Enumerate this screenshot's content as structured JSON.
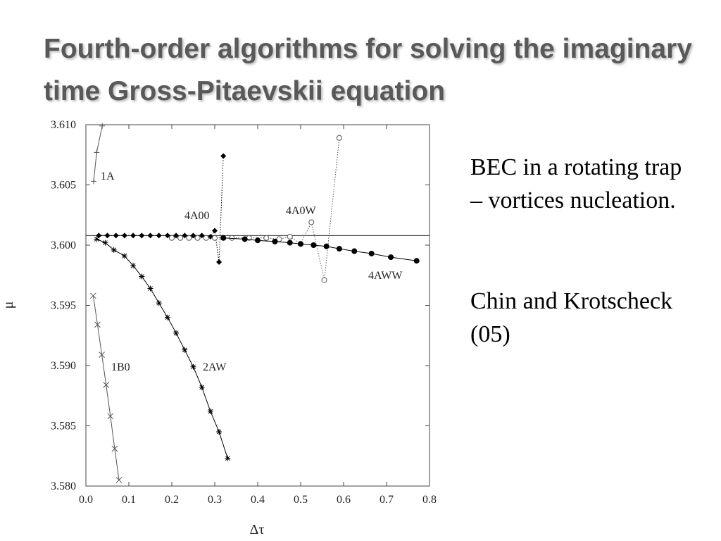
{
  "title": "Fourth-order algorithms for solving the imaginary time Gross-Pitaevskii equation",
  "body": [
    "BEC in a rotating trap – vortices nucleation.",
    "Chin and Krotscheck (05)"
  ],
  "chart_data": {
    "type": "scatter",
    "xlabel": "Δτ",
    "ylabel": "μ",
    "xlim": [
      0,
      0.8
    ],
    "ylim": [
      3.58,
      3.61
    ],
    "xticks": [
      {
        "value": 0,
        "label": "0.0"
      },
      0.1,
      0.2,
      0.3,
      0.4,
      0.5,
      0.6,
      0.7,
      0.8
    ],
    "yticks": [
      {
        "value": 3.58,
        "label": "3.580"
      },
      3.585,
      {
        "value": 3.59,
        "label": "3.590"
      },
      3.595,
      {
        "value": 3.6,
        "label": "3.600"
      },
      3.605,
      {
        "value": 3.61,
        "label": "3.610"
      }
    ],
    "reference_line": 3.6008,
    "series": [
      {
        "name": "1A",
        "marker": "plus",
        "line": "solid",
        "color": "#555555",
        "x": [
          0.018,
          0.025,
          0.038
        ],
        "values": [
          3.6053,
          3.6077,
          3.6099
        ]
      },
      {
        "name": "4A00",
        "marker": "diamond",
        "line": "dotted",
        "color": "#000000",
        "x": [
          0.03,
          0.05,
          0.07,
          0.09,
          0.11,
          0.13,
          0.15,
          0.17,
          0.19,
          0.21,
          0.23,
          0.25,
          0.27,
          0.29,
          0.3,
          0.31,
          0.32
        ],
        "values": [
          3.6008,
          3.6008,
          3.6008,
          3.6008,
          3.6008,
          3.6008,
          3.6008,
          3.6008,
          3.6008,
          3.6008,
          3.6008,
          3.6008,
          3.6008,
          3.6007,
          3.6012,
          3.5986,
          3.6074
        ]
      },
      {
        "name": "4A0W",
        "marker": "open-circle",
        "line": "dotted",
        "color": "#555555",
        "x": [
          0.2,
          0.22,
          0.24,
          0.26,
          0.28,
          0.3,
          0.34,
          0.38,
          0.42,
          0.45,
          0.475,
          0.5,
          0.525,
          0.555,
          0.59
        ],
        "values": [
          3.6006,
          3.6006,
          3.6006,
          3.6006,
          3.6006,
          3.6006,
          3.6006,
          3.6006,
          3.6006,
          3.6005,
          3.6007,
          3.6001,
          3.6019,
          3.5971,
          3.6089
        ]
      },
      {
        "name": "4AWW",
        "marker": "filled-circle",
        "line": "solid",
        "color": "#000000",
        "x": [
          0.32,
          0.37,
          0.4,
          0.44,
          0.475,
          0.5,
          0.53,
          0.56,
          0.59,
          0.625,
          0.665,
          0.71,
          0.77
        ],
        "values": [
          3.6006,
          3.6005,
          3.6004,
          3.6003,
          3.6002,
          3.6001,
          3.6,
          3.5999,
          3.5997,
          3.5995,
          3.5993,
          3.599,
          3.5987
        ]
      },
      {
        "name": "1B0",
        "marker": "cross",
        "line": "solid",
        "color": "#555555",
        "x": [
          0.017,
          0.027,
          0.037,
          0.047,
          0.057,
          0.067,
          0.077
        ],
        "values": [
          3.5958,
          3.5934,
          3.5909,
          3.5884,
          3.5858,
          3.5831,
          3.5805
        ]
      },
      {
        "name": "2AW",
        "marker": "star",
        "line": "solid",
        "color": "#000000",
        "x": [
          0.025,
          0.045,
          0.065,
          0.09,
          0.11,
          0.13,
          0.15,
          0.17,
          0.19,
          0.21,
          0.23,
          0.25,
          0.27,
          0.29,
          0.31,
          0.33
        ],
        "values": [
          3.6005,
          3.6002,
          3.5996,
          3.5991,
          3.5983,
          3.5974,
          3.5964,
          3.5952,
          3.594,
          3.5927,
          3.5913,
          3.5899,
          3.5882,
          3.5862,
          3.5845,
          3.5823
        ]
      }
    ]
  }
}
